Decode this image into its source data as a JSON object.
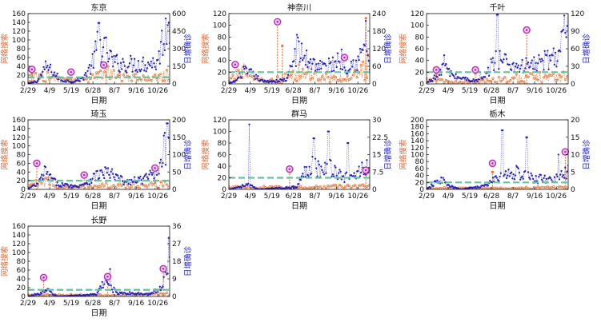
{
  "colors": {
    "search": "#E8732E",
    "cases": "#1f1fd1",
    "baseline": "#5cc99a",
    "marker": "#b52fb5",
    "axis": "#111111"
  },
  "shared": {
    "xlabel": "日期",
    "ylabel_left": "网络搜索",
    "ylabel_right": "日增确诊",
    "date_ticks": [
      "2/29",
      "4/9",
      "5/19",
      "6/28",
      "8/7",
      "9/16",
      "10/26"
    ],
    "total_days": 290
  },
  "chart_data": [
    {
      "type": "line",
      "title": "东京",
      "left_ylim": [
        0,
        160
      ],
      "left_ticks": [
        0,
        20,
        40,
        60,
        80,
        100,
        120,
        140,
        160
      ],
      "right_ylim": [
        0,
        600
      ],
      "right_ticks": [
        0,
        150,
        300,
        450,
        600
      ],
      "baseline": 15,
      "cases_key": [
        [
          0,
          2
        ],
        [
          20,
          25
        ],
        [
          38,
          150
        ],
        [
          55,
          80
        ],
        [
          70,
          30
        ],
        [
          92,
          20
        ],
        [
          110,
          40
        ],
        [
          130,
          150
        ],
        [
          145,
          360
        ],
        [
          160,
          280
        ],
        [
          175,
          180
        ],
        [
          200,
          170
        ],
        [
          230,
          170
        ],
        [
          250,
          180
        ],
        [
          265,
          180
        ],
        [
          280,
          450
        ],
        [
          290,
          540
        ]
      ],
      "cases_spikes": [
        [
          145,
          520
        ]
      ],
      "search_key": [
        [
          0,
          8
        ],
        [
          30,
          20
        ],
        [
          45,
          20
        ],
        [
          60,
          10
        ],
        [
          90,
          6
        ],
        [
          130,
          12
        ],
        [
          160,
          25
        ],
        [
          200,
          18
        ],
        [
          230,
          12
        ],
        [
          260,
          12
        ],
        [
          290,
          20
        ]
      ],
      "search_spikes": [
        [
          8,
          24
        ],
        [
          90,
          22
        ],
        [
          160,
          40
        ]
      ],
      "markers": [
        [
          8,
          33
        ],
        [
          88,
          27
        ],
        [
          155,
          43
        ]
      ]
    },
    {
      "type": "line",
      "title": "神奈川",
      "left_ylim": [
        0,
        120
      ],
      "left_ticks": [
        0,
        20,
        40,
        60,
        80,
        100,
        120
      ],
      "right_ylim": [
        0,
        240
      ],
      "right_ticks": [
        0,
        60,
        120,
        180,
        240
      ],
      "baseline": 20,
      "cases_key": [
        [
          0,
          2
        ],
        [
          15,
          10
        ],
        [
          30,
          45
        ],
        [
          40,
          35
        ],
        [
          50,
          30
        ],
        [
          70,
          8
        ],
        [
          100,
          10
        ],
        [
          120,
          15
        ],
        [
          140,
          120
        ],
        [
          155,
          90
        ],
        [
          175,
          70
        ],
        [
          200,
          55
        ],
        [
          215,
          70
        ],
        [
          230,
          90
        ],
        [
          240,
          60
        ],
        [
          250,
          70
        ],
        [
          265,
          70
        ],
        [
          275,
          110
        ],
        [
          282,
          160
        ],
        [
          290,
          50
        ]
      ],
      "cases_spikes": [
        [
          45,
          50
        ],
        [
          282,
          215
        ]
      ],
      "search_key": [
        [
          0,
          5
        ],
        [
          30,
          20
        ],
        [
          40,
          10
        ],
        [
          60,
          5
        ],
        [
          90,
          5
        ],
        [
          140,
          20
        ],
        [
          200,
          10
        ],
        [
          250,
          8
        ],
        [
          270,
          20
        ],
        [
          290,
          35
        ]
      ],
      "search_spikes": [
        [
          100,
          105
        ],
        [
          110,
          65
        ],
        [
          282,
          112
        ]
      ],
      "markers": [
        [
          13,
          33
        ],
        [
          100,
          106
        ],
        [
          238,
          45
        ]
      ]
    },
    {
      "type": "line",
      "title": "千叶",
      "left_ylim": [
        0,
        120
      ],
      "left_ticks": [
        0,
        20,
        40,
        60,
        80,
        100,
        120
      ],
      "right_ylim": [
        0,
        120
      ],
      "right_ticks": [
        0,
        30,
        60,
        90,
        120
      ],
      "baseline": 20,
      "cases_key": [
        [
          0,
          2
        ],
        [
          15,
          10
        ],
        [
          25,
          15
        ],
        [
          35,
          38
        ],
        [
          45,
          20
        ],
        [
          60,
          12
        ],
        [
          100,
          5
        ],
        [
          120,
          10
        ],
        [
          135,
          35
        ],
        [
          145,
          45
        ],
        [
          160,
          40
        ],
        [
          180,
          30
        ],
        [
          200,
          30
        ],
        [
          230,
          35
        ],
        [
          245,
          40
        ],
        [
          255,
          45
        ],
        [
          270,
          50
        ],
        [
          280,
          80
        ],
        [
          290,
          100
        ]
      ],
      "cases_spikes": [
        [
          145,
          118
        ],
        [
          110,
          20
        ]
      ],
      "search_key": [
        [
          0,
          5
        ],
        [
          30,
          5
        ],
        [
          60,
          3
        ],
        [
          100,
          3
        ],
        [
          150,
          8
        ],
        [
          200,
          10
        ],
        [
          250,
          12
        ],
        [
          270,
          10
        ],
        [
          290,
          15
        ]
      ],
      "search_spikes": [
        [
          20,
          18
        ],
        [
          100,
          18
        ],
        [
          205,
          95
        ]
      ],
      "markers": [
        [
          20,
          24
        ],
        [
          100,
          24
        ],
        [
          205,
          92
        ]
      ]
    },
    {
      "type": "line",
      "title": "琦玉",
      "left_ylim": [
        0,
        160
      ],
      "left_ticks": [
        0,
        20,
        40,
        60,
        80,
        100,
        120,
        140,
        160
      ],
      "right_ylim": [
        0,
        200
      ],
      "right_ticks": [
        0,
        50,
        100,
        150,
        200
      ],
      "baseline": 20,
      "cases_key": [
        [
          0,
          2
        ],
        [
          20,
          15
        ],
        [
          35,
          50
        ],
        [
          45,
          35
        ],
        [
          60,
          15
        ],
        [
          100,
          8
        ],
        [
          120,
          20
        ],
        [
          140,
          40
        ],
        [
          160,
          50
        ],
        [
          180,
          35
        ],
        [
          200,
          20
        ],
        [
          240,
          30
        ],
        [
          260,
          50
        ],
        [
          275,
          100
        ],
        [
          285,
          130
        ],
        [
          290,
          150
        ]
      ],
      "cases_spikes": [
        [
          285,
          190
        ]
      ],
      "search_key": [
        [
          0,
          5
        ],
        [
          30,
          18
        ],
        [
          45,
          18
        ],
        [
          60,
          6
        ],
        [
          100,
          6
        ],
        [
          130,
          10
        ],
        [
          180,
          8
        ],
        [
          230,
          8
        ],
        [
          260,
          10
        ],
        [
          290,
          15
        ]
      ],
      "search_spikes": [
        [
          18,
          58
        ],
        [
          115,
          35
        ],
        [
          260,
          48
        ]
      ],
      "markers": [
        [
          18,
          60
        ],
        [
          115,
          33
        ],
        [
          260,
          49
        ]
      ]
    },
    {
      "type": "line",
      "title": "群马",
      "left_ylim": [
        0,
        120
      ],
      "left_ticks": [
        0,
        20,
        40,
        60,
        80,
        100,
        120
      ],
      "right_ylim": [
        0,
        30
      ],
      "right_ticks": [
        0,
        7.5,
        15,
        22.5,
        30
      ],
      "baseline": 20,
      "cases_key": [
        [
          0,
          0
        ],
        [
          40,
          2
        ],
        [
          60,
          0
        ],
        [
          140,
          1
        ],
        [
          150,
          5
        ],
        [
          170,
          12
        ],
        [
          190,
          8
        ],
        [
          210,
          10
        ],
        [
          230,
          6
        ],
        [
          250,
          5
        ],
        [
          270,
          8
        ],
        [
          285,
          10
        ],
        [
          290,
          8
        ]
      ],
      "cases_spikes": [
        [
          42,
          28
        ],
        [
          175,
          22
        ],
        [
          205,
          25
        ],
        [
          245,
          20
        ]
      ],
      "search_key": [
        [
          0,
          3
        ],
        [
          100,
          3
        ],
        [
          200,
          4
        ],
        [
          290,
          5
        ]
      ],
      "search_spikes": [
        [
          125,
          30
        ],
        [
          282,
          25
        ]
      ],
      "markers": [
        [
          125,
          35
        ],
        [
          282,
          33
        ]
      ]
    },
    {
      "type": "line",
      "title": "栃木",
      "left_ylim": [
        0,
        200
      ],
      "left_ticks": [
        0,
        20,
        40,
        60,
        80,
        100,
        120,
        140,
        160,
        180,
        200
      ],
      "right_ylim": [
        0,
        20
      ],
      "right_ticks": [
        0,
        5,
        10,
        15,
        20
      ],
      "baseline": 20,
      "cases_key": [
        [
          0,
          0
        ],
        [
          30,
          3
        ],
        [
          45,
          1
        ],
        [
          70,
          0
        ],
        [
          120,
          1
        ],
        [
          140,
          3
        ],
        [
          160,
          4
        ],
        [
          180,
          5
        ],
        [
          200,
          4
        ],
        [
          220,
          3
        ],
        [
          240,
          3
        ],
        [
          260,
          3
        ],
        [
          280,
          4
        ],
        [
          290,
          5
        ]
      ],
      "cases_spikes": [
        [
          155,
          17
        ],
        [
          205,
          15
        ],
        [
          270,
          10
        ]
      ],
      "search_key": [
        [
          0,
          3
        ],
        [
          100,
          3
        ],
        [
          200,
          4
        ],
        [
          290,
          6
        ]
      ],
      "search_spikes": [
        [
          135,
          50
        ],
        [
          284,
          105
        ]
      ],
      "markers": [
        [
          135,
          75
        ],
        [
          284,
          108
        ]
      ]
    },
    {
      "type": "line",
      "title": "长野",
      "left_ylim": [
        0,
        160
      ],
      "left_ticks": [
        0,
        20,
        40,
        60,
        80,
        100,
        120,
        140,
        160
      ],
      "right_ylim": [
        0,
        36
      ],
      "right_ticks": [
        0,
        9,
        18,
        27,
        36
      ],
      "baseline": 15,
      "cases_key": [
        [
          0,
          0
        ],
        [
          30,
          2
        ],
        [
          40,
          3
        ],
        [
          60,
          0
        ],
        [
          140,
          1
        ],
        [
          160,
          8
        ],
        [
          170,
          5
        ],
        [
          180,
          2
        ],
        [
          250,
          1
        ],
        [
          275,
          5
        ],
        [
          285,
          18
        ],
        [
          290,
          25
        ]
      ],
      "cases_spikes": [
        [
          168,
          14
        ],
        [
          288,
          30
        ]
      ],
      "search_key": [
        [
          0,
          3
        ],
        [
          100,
          3
        ],
        [
          200,
          3
        ],
        [
          290,
          6
        ]
      ],
      "search_spikes": [
        [
          32,
          38
        ],
        [
          163,
          40
        ],
        [
          277,
          62
        ]
      ],
      "markers": [
        [
          32,
          43
        ],
        [
          163,
          45
        ],
        [
          277,
          63
        ]
      ]
    }
  ]
}
